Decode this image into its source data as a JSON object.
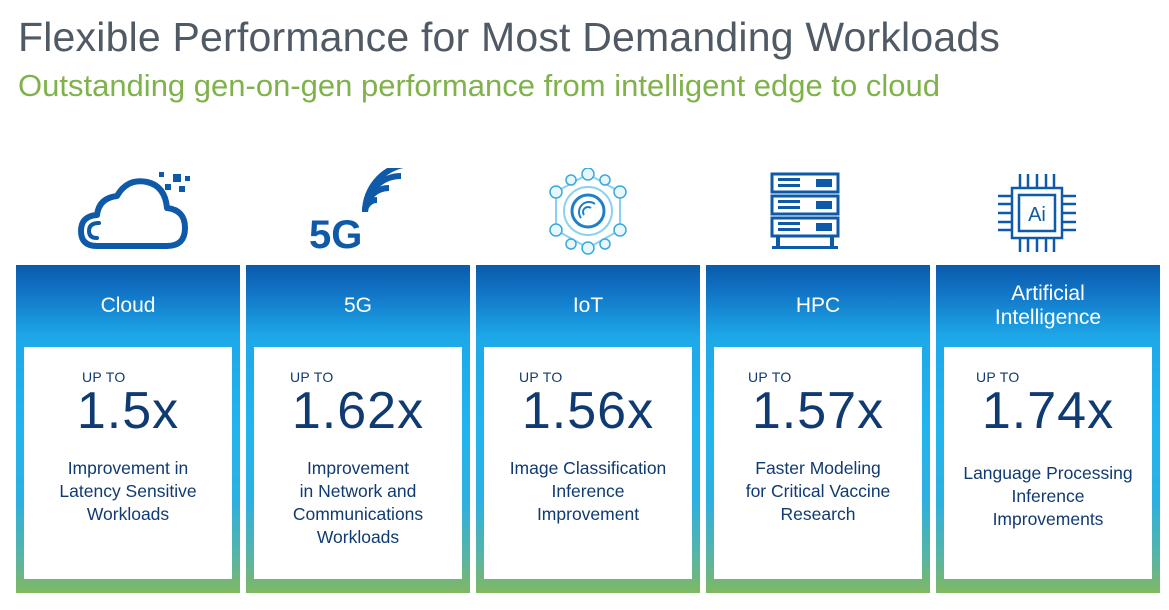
{
  "header": {
    "title": "Flexible Performance for Most Demanding Workloads",
    "subtitle": "Outstanding gen-on-gen performance from intelligent edge to cloud"
  },
  "colors": {
    "title": "#505a64",
    "subtitle": "#7fb24a",
    "primary_blue": "#0f5aa8",
    "cyan": "#22b4ee",
    "green": "#7fb862",
    "card_text": "#103a72"
  },
  "cards": [
    {
      "icon": "cloud-icon",
      "heading": "Cloud",
      "prefix": "UP TO",
      "value": "1.5x",
      "description": "Improvement in\nLatency Sensitive\nWorkloads"
    },
    {
      "icon": "5g-icon",
      "heading": "5G",
      "prefix": "UP TO",
      "value": "1.62x",
      "description": "Improvement\nin Network and\nCommunications\nWorkloads"
    },
    {
      "icon": "iot-icon",
      "heading": "IoT",
      "prefix": "UP TO",
      "value": "1.56x",
      "description": "Image Classification\nInference\nImprovement"
    },
    {
      "icon": "server-rack-icon",
      "heading": "HPC",
      "prefix": "UP TO",
      "value": "1.57x",
      "description": "Faster Modeling\nfor Critical Vaccine\nResearch"
    },
    {
      "icon": "ai-chip-icon",
      "heading": "Artificial\nIntelligence",
      "prefix": "UP TO",
      "value": "1.74x",
      "description": "Language Processing\nInference\nImprovements"
    }
  ],
  "icon_text": {
    "five_g": "5G",
    "ai": "Ai"
  }
}
